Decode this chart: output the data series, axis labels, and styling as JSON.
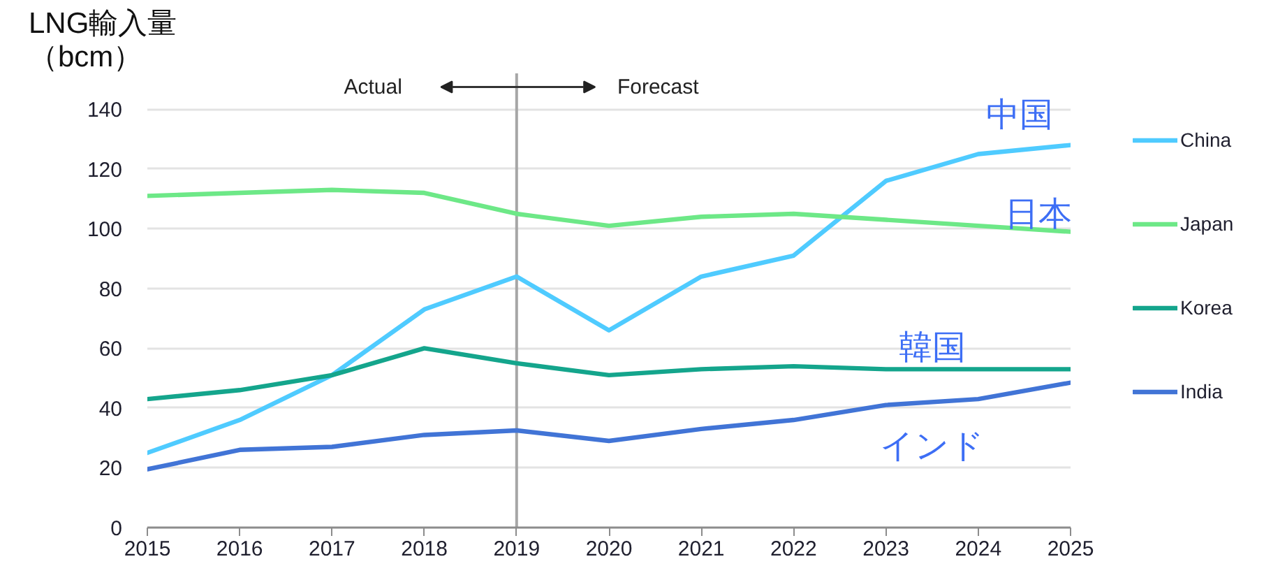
{
  "chart_data": {
    "type": "line",
    "ylabel": "LNG輸入量（bcm）",
    "x": [
      2015,
      2016,
      2017,
      2018,
      2019,
      2020,
      2021,
      2022,
      2023,
      2024,
      2025
    ],
    "xlim": [
      2015,
      2025
    ],
    "xticks": [
      2015,
      2016,
      2017,
      2018,
      2019,
      2020,
      2021,
      2022,
      2023,
      2024,
      2025
    ],
    "ylim": [
      0,
      152
    ],
    "yticks": [
      0,
      20,
      40,
      60,
      80,
      100,
      120,
      140
    ],
    "grid": "y",
    "legend": "right",
    "series": [
      {
        "name": "China",
        "color": "#4fcbff",
        "values": [
          25,
          36,
          51,
          73,
          84,
          66,
          84,
          91,
          116,
          125,
          128
        ]
      },
      {
        "name": "Japan",
        "color": "#6de887",
        "values": [
          111,
          112,
          113,
          112,
          105,
          101,
          104,
          105,
          103,
          101,
          99
        ]
      },
      {
        "name": "Korea",
        "color": "#14a58c",
        "values": [
          43,
          46,
          51,
          60,
          55,
          51,
          53,
          54,
          53,
          53,
          53
        ]
      },
      {
        "name": "India",
        "color": "#4174d6",
        "values": [
          19.5,
          26,
          27,
          31,
          32.5,
          29,
          33,
          36,
          41,
          43,
          48.5
        ]
      }
    ],
    "ref_lines": [
      {
        "axis": "x",
        "value": 2019,
        "color": "#a6a6a6"
      }
    ],
    "annotations": [
      "Actual",
      "Forecast",
      "中国",
      "日本",
      "韓国",
      "インド"
    ]
  }
}
